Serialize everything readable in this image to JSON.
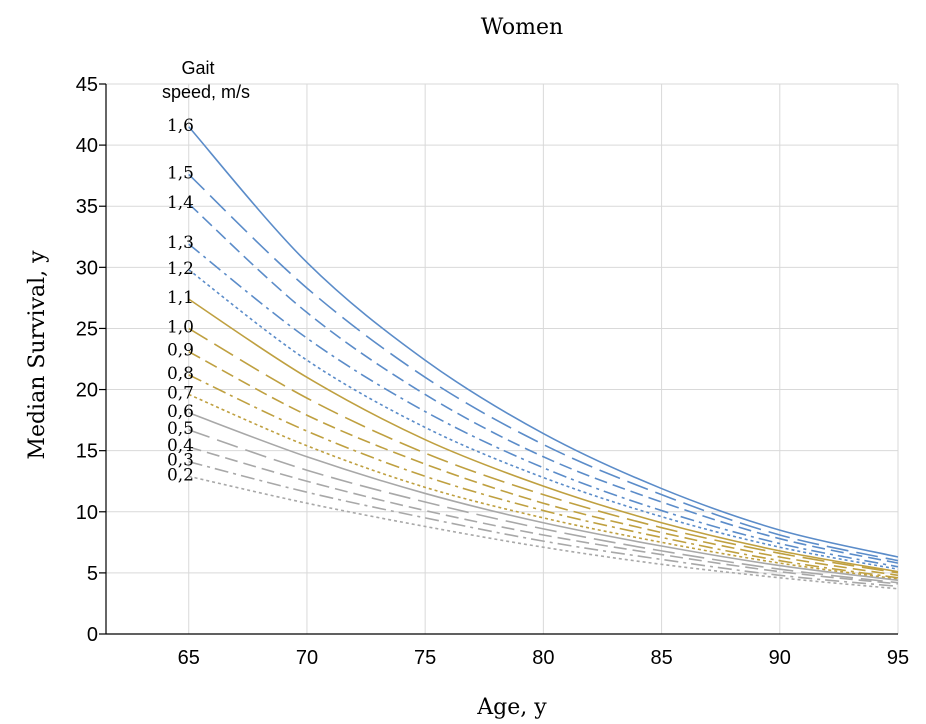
{
  "chart_data": {
    "type": "line",
    "title": "Women",
    "xlabel": "Age, y",
    "ylabel": "Median Survival, y",
    "xlim": [
      61.5,
      95
    ],
    "ylim": [
      0,
      45
    ],
    "x_ticks": [
      65,
      70,
      75,
      80,
      85,
      90,
      95
    ],
    "y_ticks": [
      0,
      5,
      10,
      15,
      20,
      25,
      30,
      35,
      40,
      45
    ],
    "grid": true,
    "legend_title_lines": [
      "Gait",
      "speed, m/s"
    ],
    "colors": {
      "blue": "#5b8cc9",
      "gold": "#bfa040",
      "gray": "#a8a8a8",
      "axis": "#000000",
      "grid": "#d9d9d9"
    },
    "x": [
      65,
      70,
      75,
      80,
      85,
      90,
      95
    ],
    "series": [
      {
        "name": "1,6",
        "color_group": "blue",
        "dash": "solid",
        "values": [
          41.5,
          30.4,
          22.4,
          16.4,
          11.9,
          8.5,
          6.3
        ]
      },
      {
        "name": "1,5",
        "color_group": "blue",
        "dash": "longdash",
        "values": [
          37.6,
          28.3,
          21.0,
          15.5,
          11.4,
          8.1,
          6.0
        ]
      },
      {
        "name": "1,4",
        "color_group": "blue",
        "dash": "dash",
        "values": [
          35.2,
          26.3,
          19.6,
          14.5,
          10.8,
          7.8,
          5.8
        ]
      },
      {
        "name": "1,3",
        "color_group": "blue",
        "dash": "dashdot",
        "values": [
          31.9,
          24.2,
          18.2,
          13.6,
          10.1,
          7.4,
          5.5
        ]
      },
      {
        "name": "1,2",
        "color_group": "blue",
        "dash": "dot",
        "values": [
          29.8,
          22.4,
          16.9,
          12.8,
          9.6,
          7.1,
          5.3
        ]
      },
      {
        "name": "1,1",
        "color_group": "gold",
        "dash": "solid",
        "values": [
          27.4,
          21.0,
          15.9,
          12.1,
          9.1,
          6.8,
          5.1
        ]
      },
      {
        "name": "1,0",
        "color_group": "gold",
        "dash": "longdash",
        "values": [
          25.0,
          19.3,
          14.8,
          11.4,
          8.7,
          6.6,
          5.0
        ]
      },
      {
        "name": "0,9",
        "color_group": "gold",
        "dash": "dash",
        "values": [
          23.1,
          17.9,
          13.9,
          10.7,
          8.3,
          6.3,
          4.8
        ]
      },
      {
        "name": "0,8",
        "color_group": "gold",
        "dash": "dashdot",
        "values": [
          21.2,
          16.6,
          12.9,
          10.1,
          7.9,
          6.0,
          4.6
        ]
      },
      {
        "name": "0,7",
        "color_group": "gold",
        "dash": "dot",
        "values": [
          19.6,
          15.4,
          12.0,
          9.5,
          7.5,
          5.8,
          4.5
        ]
      },
      {
        "name": "0,6",
        "color_group": "gray",
        "dash": "solid",
        "values": [
          18.1,
          14.5,
          11.5,
          9.1,
          7.2,
          5.6,
          4.4
        ]
      },
      {
        "name": "0,5",
        "color_group": "gray",
        "dash": "longdash",
        "values": [
          16.7,
          13.4,
          10.8,
          8.6,
          6.8,
          5.3,
          4.2
        ]
      },
      {
        "name": "0,4",
        "color_group": "gray",
        "dash": "dash",
        "values": [
          15.3,
          12.5,
          10.1,
          8.1,
          6.5,
          5.1,
          4.1
        ]
      },
      {
        "name": "0,3",
        "color_group": "gray",
        "dash": "dashdot",
        "values": [
          14.1,
          11.6,
          9.5,
          7.6,
          6.1,
          4.8,
          3.9
        ]
      },
      {
        "name": "0,2",
        "color_group": "gray",
        "dash": "dot",
        "values": [
          12.9,
          10.7,
          8.8,
          7.1,
          5.7,
          4.6,
          3.7
        ]
      }
    ]
  }
}
